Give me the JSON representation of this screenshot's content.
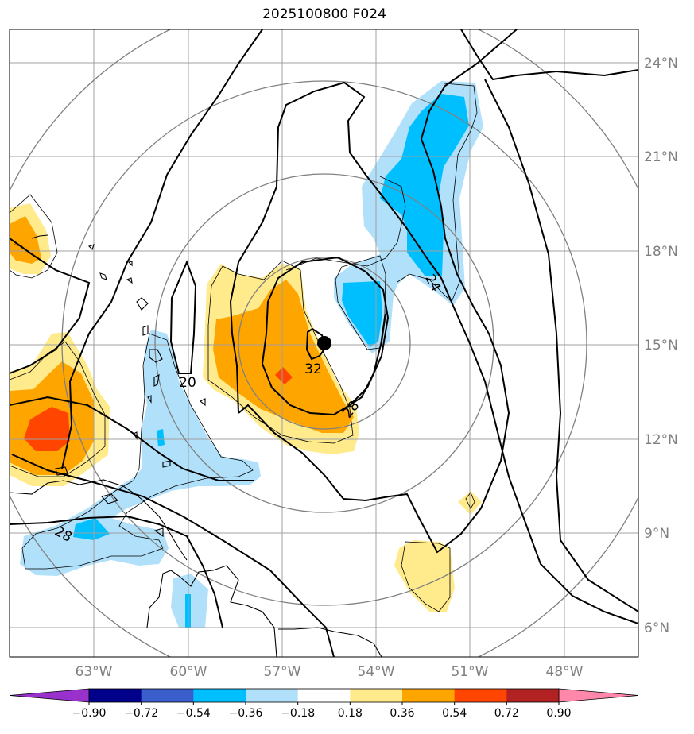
{
  "title": "2025100800 F024",
  "lon_labels": [
    "63°W",
    "60°W",
    "57°W",
    "54°W",
    "51°W",
    "48°W"
  ],
  "lat_labels": [
    "24°N",
    "21°N",
    "18°N",
    "15°N",
    "12°N",
    "9°N",
    "6°N"
  ],
  "contour_labels": {
    "c20": "20",
    "c24": "24",
    "c28a": "28",
    "c28b": "28",
    "c32": "32"
  },
  "colorbar": {
    "levels": [
      "−0.90",
      "−0.72",
      "−0.54",
      "−0.36",
      "−0.18",
      "0.18",
      "0.36",
      "0.54",
      "0.72",
      "0.90"
    ],
    "colors": [
      "#9932cc",
      "#00008b",
      "#3a5fcd",
      "#00bfff",
      "#b0e0fa",
      "#ffffff",
      "#ffea8c",
      "#ffa500",
      "#ff4500",
      "#b22222",
      "#ff88aa"
    ]
  },
  "colors": {
    "light_blue": "#b0e0fa",
    "blue": "#00bfff",
    "light_yellow": "#ffea8c",
    "orange": "#ffa500",
    "red": "#ff4500",
    "grid": "#a0a0a0",
    "range_rings": "#808080"
  },
  "storm_marker": "storm-center"
}
